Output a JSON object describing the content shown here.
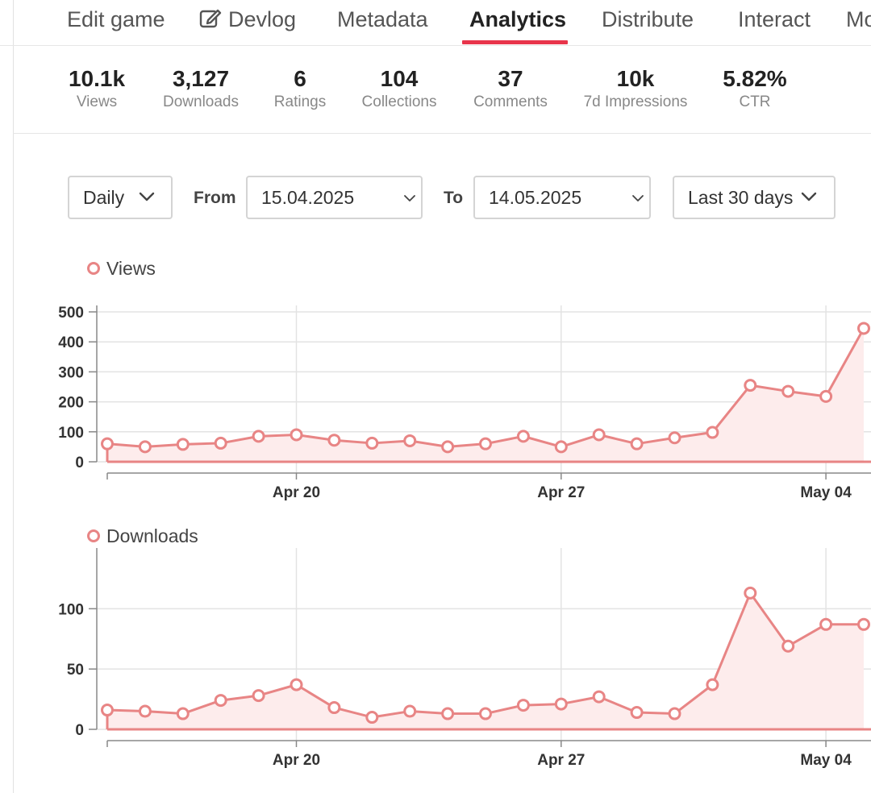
{
  "tabs": [
    {
      "label": "Edit game",
      "active": false
    },
    {
      "label": "Devlog",
      "active": false,
      "icon": "edit-icon"
    },
    {
      "label": "Metadata",
      "active": false
    },
    {
      "label": "Analytics",
      "active": true
    },
    {
      "label": "Distribute",
      "active": false
    },
    {
      "label": "Interact",
      "active": false
    },
    {
      "label": "Mo",
      "active": false
    }
  ],
  "stats": [
    {
      "value": "10.1k",
      "label": "Views"
    },
    {
      "value": "3,127",
      "label": "Downloads"
    },
    {
      "value": "6",
      "label": "Ratings"
    },
    {
      "value": "104",
      "label": "Collections"
    },
    {
      "value": "37",
      "label": "Comments"
    },
    {
      "value": "10k",
      "label": "7d Impressions"
    },
    {
      "value": "5.82%",
      "label": "CTR"
    }
  ],
  "controls": {
    "interval": "Daily",
    "from_label": "From",
    "from_date": "15.04.2025",
    "to_label": "To",
    "to_date": "14.05.2025",
    "range": "Last 30 days"
  },
  "colors": {
    "accent_red": "#e8354b",
    "series_line": "#e88585",
    "series_fill": "#fdecec",
    "grid": "#e3e3e3"
  },
  "chart_data": [
    {
      "type": "area",
      "title": "Views",
      "series": [
        {
          "name": "Views",
          "values": [
            60,
            50,
            58,
            62,
            85,
            90,
            72,
            62,
            70,
            50,
            60,
            85,
            50,
            90,
            60,
            80,
            98,
            255,
            235,
            218,
            445
          ]
        }
      ],
      "x": [
        "Apr 15",
        "Apr 16",
        "Apr 17",
        "Apr 18",
        "Apr 19",
        "Apr 20",
        "Apr 21",
        "Apr 22",
        "Apr 23",
        "Apr 24",
        "Apr 25",
        "Apr 26",
        "Apr 27",
        "Apr 28",
        "Apr 29",
        "Apr 30",
        "May 01",
        "May 02",
        "May 03",
        "May 04",
        "May 05"
      ],
      "x_ticks": [
        "Apr 20",
        "Apr 27",
        "May 04"
      ],
      "y_ticks": [
        0,
        100,
        200,
        300,
        400,
        500
      ],
      "ylim": [
        0,
        500
      ],
      "grid": true
    },
    {
      "type": "area",
      "title": "Downloads",
      "series": [
        {
          "name": "Downloads",
          "values": [
            16,
            15,
            13,
            24,
            28,
            37,
            18,
            10,
            15,
            13,
            13,
            20,
            21,
            27,
            14,
            13,
            37,
            113,
            69,
            87,
            87
          ]
        }
      ],
      "x": [
        "Apr 15",
        "Apr 16",
        "Apr 17",
        "Apr 18",
        "Apr 19",
        "Apr 20",
        "Apr 21",
        "Apr 22",
        "Apr 23",
        "Apr 24",
        "Apr 25",
        "Apr 26",
        "Apr 27",
        "Apr 28",
        "Apr 29",
        "Apr 30",
        "May 01",
        "May 02",
        "May 03",
        "May 04",
        "May 05"
      ],
      "x_ticks": [
        "Apr 20",
        "Apr 27",
        "May 04"
      ],
      "y_ticks": [
        0,
        50,
        100
      ],
      "ylim": [
        0,
        145
      ],
      "grid": true
    }
  ]
}
